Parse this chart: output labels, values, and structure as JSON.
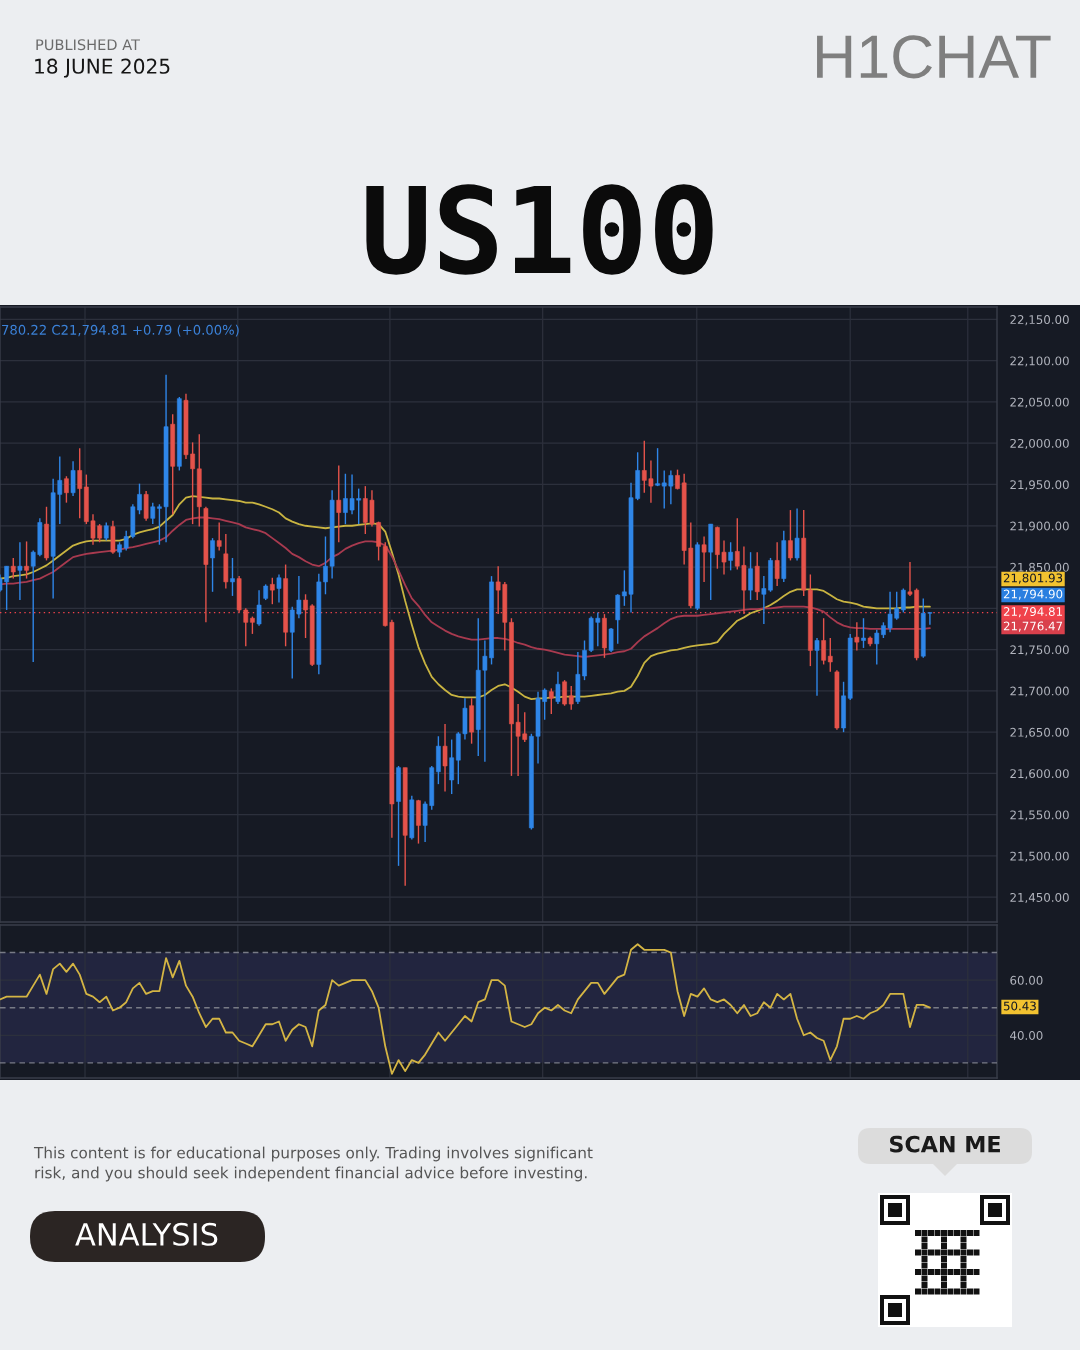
{
  "chart_data": [
    {
      "type": "candlestick",
      "title": "US100",
      "categories": [
        null,
        null,
        null,
        null,
        null,
        null,
        null,
        null,
        null,
        null,
        null,
        null,
        null,
        null,
        null,
        null,
        null,
        null,
        null,
        null,
        null,
        null,
        null,
        null,
        null,
        null,
        null,
        null,
        null,
        null,
        null,
        null,
        null,
        null,
        null,
        null,
        null,
        null,
        null,
        null,
        null,
        null,
        null,
        null,
        null,
        null,
        null,
        null,
        null,
        null,
        null,
        null,
        null,
        null,
        null,
        null,
        null,
        null,
        null,
        null,
        null,
        null,
        null,
        null,
        null,
        null,
        null,
        null,
        null,
        null,
        null,
        null,
        null,
        null,
        null,
        null,
        null,
        null,
        null,
        null,
        null,
        null,
        null,
        null,
        null,
        null,
        null,
        null,
        null,
        null,
        null,
        null,
        null,
        null,
        null,
        null,
        null,
        null,
        null,
        null,
        null,
        null,
        null,
        null,
        null,
        null,
        null,
        null,
        null,
        null,
        null,
        null,
        null,
        null,
        null,
        null,
        null,
        null,
        null,
        null,
        null,
        null,
        null,
        null,
        null,
        null,
        null,
        null,
        null,
        null,
        null,
        null,
        null,
        null,
        null,
        null,
        null,
        null,
        null,
        null,
        null
      ],
      "ohlc": [
        [
          21822,
          21841,
          21820,
          21836
        ],
        [
          21832,
          21851,
          21798,
          21851
        ],
        [
          21851,
          21861,
          21836,
          21844
        ],
        [
          21846,
          21880,
          21810,
          21851
        ],
        [
          21851,
          21881,
          21836,
          21846
        ],
        [
          21851,
          21870,
          21735,
          21868
        ],
        [
          21865,
          21909,
          21863,
          21904
        ],
        [
          21902,
          21923,
          21858,
          21861
        ],
        [
          21863,
          21957,
          21812,
          21940
        ],
        [
          21938,
          21984,
          21902,
          21955
        ],
        [
          21957,
          21960,
          21928,
          21940
        ],
        [
          21940,
          21978,
          21936,
          21967
        ],
        [
          21967,
          21994,
          21909,
          21945
        ],
        [
          21947,
          21962,
          21902,
          21905
        ],
        [
          21906,
          21914,
          21877,
          21885
        ],
        [
          21900,
          21902,
          21880,
          21885
        ],
        [
          21885,
          21904,
          21882,
          21900
        ],
        [
          21899,
          21906,
          21866,
          21868
        ],
        [
          21868,
          21880,
          21862,
          21877
        ],
        [
          21873,
          21894,
          21870,
          21887
        ],
        [
          21887,
          21926,
          21885,
          21923
        ],
        [
          21919,
          21951,
          21914,
          21938
        ],
        [
          21938,
          21942,
          21906,
          21909
        ],
        [
          21909,
          21928,
          21902,
          21923
        ],
        [
          21921,
          21926,
          21877,
          21923
        ],
        [
          21923,
          22083,
          21880,
          22020
        ],
        [
          22023,
          22035,
          21914,
          21972
        ],
        [
          21972,
          22056,
          21967,
          22054
        ],
        [
          22052,
          22060,
          21981,
          21986
        ],
        [
          21987,
          22001,
          21902,
          21969
        ],
        [
          21969,
          22011,
          21899,
          21923
        ],
        [
          21921,
          21923,
          21783,
          21853
        ],
        [
          21861,
          21885,
          21820,
          21882
        ],
        [
          21882,
          21904,
          21870,
          21875
        ],
        [
          21866,
          21890,
          21824,
          21832
        ],
        [
          21832,
          21861,
          21815,
          21836
        ],
        [
          21836,
          21839,
          21795,
          21798
        ],
        [
          21798,
          21800,
          21754,
          21783
        ],
        [
          21788,
          21790,
          21769,
          21783
        ],
        [
          21781,
          21822,
          21779,
          21804
        ],
        [
          21812,
          21829,
          21810,
          21827
        ],
        [
          21829,
          21837,
          21805,
          21822
        ],
        [
          21824,
          21841,
          21807,
          21837
        ],
        [
          21836,
          21853,
          21754,
          21771
        ],
        [
          21771,
          21802,
          21715,
          21798
        ],
        [
          21793,
          21839,
          21788,
          21810
        ],
        [
          21810,
          21817,
          21764,
          21798
        ],
        [
          21803,
          21805,
          21730,
          21732
        ],
        [
          21732,
          21842,
          21720,
          21832
        ],
        [
          21832,
          21887,
          21817,
          21851
        ],
        [
          21851,
          21943,
          21836,
          21931
        ],
        [
          21931,
          21973,
          21880,
          21916
        ],
        [
          21916,
          21963,
          21902,
          21933
        ],
        [
          21919,
          21962,
          21914,
          21933
        ],
        [
          21931,
          21945,
          21902,
          21933
        ],
        [
          21933,
          21948,
          21890,
          21904
        ],
        [
          21931,
          21943,
          21899,
          21902
        ],
        [
          21904,
          21905,
          21858,
          21875
        ],
        [
          21875,
          21880,
          21778,
          21779
        ],
        [
          21783,
          21786,
          21522,
          21563
        ],
        [
          21566,
          21609,
          21488,
          21607
        ],
        [
          21607,
          21607,
          21464,
          21525
        ],
        [
          21522,
          21573,
          21520,
          21568
        ],
        [
          21567,
          21568,
          21515,
          21537
        ],
        [
          21537,
          21566,
          21517,
          21563
        ],
        [
          21561,
          21609,
          21556,
          21607
        ],
        [
          21602,
          21645,
          21587,
          21633
        ],
        [
          21633,
          21660,
          21578,
          21609
        ],
        [
          21592,
          21641,
          21575,
          21619
        ],
        [
          21616,
          21650,
          21587,
          21648
        ],
        [
          21648,
          21691,
          21641,
          21679
        ],
        [
          21682,
          21691,
          21636,
          21650
        ],
        [
          21653,
          21788,
          21621,
          21725
        ],
        [
          21725,
          21761,
          21614,
          21742
        ],
        [
          21740,
          21839,
          21732,
          21832
        ],
        [
          21832,
          21851,
          21793,
          21822
        ],
        [
          21829,
          21832,
          21749,
          21783
        ],
        [
          21783,
          21788,
          21597,
          21660
        ],
        [
          21662,
          21684,
          21597,
          21645
        ],
        [
          21648,
          21674,
          21638,
          21641
        ],
        [
          21534,
          21648,
          21532,
          21645
        ],
        [
          21645,
          21699,
          21612,
          21691
        ],
        [
          21687,
          21703,
          21665,
          21701
        ],
        [
          21699,
          21703,
          21672,
          21691
        ],
        [
          21687,
          21723,
          21684,
          21708
        ],
        [
          21711,
          21713,
          21682,
          21684
        ],
        [
          21694,
          21706,
          21677,
          21684
        ],
        [
          21687,
          21747,
          21684,
          21720
        ],
        [
          21718,
          21761,
          21713,
          21749
        ],
        [
          21749,
          21790,
          21747,
          21788
        ],
        [
          21783,
          21795,
          21754,
          21788
        ],
        [
          21788,
          21793,
          21740,
          21752
        ],
        [
          21749,
          21776,
          21747,
          21775
        ],
        [
          21786,
          21817,
          21757,
          21816
        ],
        [
          21815,
          21846,
          21803,
          21820
        ],
        [
          21817,
          21952,
          21795,
          21934
        ],
        [
          21933,
          21989,
          21931,
          21967
        ],
        [
          21967,
          22003,
          21940,
          21955
        ],
        [
          21957,
          21979,
          21928,
          21948
        ],
        [
          21949,
          21994,
          21948,
          21951
        ],
        [
          21948,
          21967,
          21921,
          21952
        ],
        [
          21948,
          21967,
          21926,
          21961
        ],
        [
          21961,
          21968,
          21944,
          21945
        ],
        [
          21952,
          21963,
          21853,
          21870
        ],
        [
          21873,
          21904,
          21800,
          21803
        ],
        [
          21800,
          21880,
          21798,
          21877
        ],
        [
          21877,
          21887,
          21832,
          21868
        ],
        [
          21868,
          21902,
          21810,
          21902
        ],
        [
          21898,
          21899,
          21848,
          21865
        ],
        [
          21868,
          21882,
          21841,
          21856
        ],
        [
          21858,
          21880,
          21846,
          21868
        ],
        [
          21869,
          21909,
          21847,
          21851
        ],
        [
          21852,
          21875,
          21793,
          21822
        ],
        [
          21822,
          21868,
          21810,
          21848
        ],
        [
          21851,
          21868,
          21810,
          21820
        ],
        [
          21817,
          21839,
          21781,
          21824
        ],
        [
          21822,
          21861,
          21820,
          21858
        ],
        [
          21858,
          21880,
          21827,
          21836
        ],
        [
          21836,
          21894,
          21832,
          21882
        ],
        [
          21882,
          21919,
          21858,
          21861
        ],
        [
          21861,
          21921,
          21858,
          21885
        ],
        [
          21885,
          21919,
          21815,
          21822
        ],
        [
          21822,
          21841,
          21730,
          21749
        ],
        [
          21749,
          21764,
          21694,
          21761
        ],
        [
          21761,
          21788,
          21732,
          21737
        ],
        [
          21742,
          21764,
          21723,
          21735
        ],
        [
          21723,
          21725,
          21653,
          21655
        ],
        [
          21655,
          21711,
          21650,
          21694
        ],
        [
          21691,
          21769,
          21689,
          21764
        ],
        [
          21765,
          21783,
          21749,
          21759
        ],
        [
          21761,
          21788,
          21752,
          21764
        ],
        [
          21764,
          21766,
          21754,
          21757
        ],
        [
          21757,
          21774,
          21732,
          21770
        ],
        [
          21768,
          21783,
          21764,
          21779
        ],
        [
          21776,
          21820,
          21771,
          21793
        ],
        [
          21788,
          21820,
          21786,
          21800
        ],
        [
          21798,
          21824,
          21795,
          21822
        ],
        [
          21820,
          21856,
          21815,
          21817
        ],
        [
          21822,
          21824,
          21737,
          21740
        ],
        [
          21742,
          21812,
          21740,
          21794
        ],
        [
          21794,
          21795,
          21780.22,
          21794.81
        ]
      ],
      "colors": [
        "#2f86e8",
        "#2f86e8",
        "#e5534b",
        "#2f86e8",
        "#e5534b",
        "#2f86e8",
        "#2f86e8",
        "#e5534b",
        "#2f86e8",
        "#2f86e8",
        "#e5534b",
        "#2f86e8",
        "#e5534b",
        "#e5534b",
        "#e5534b",
        "#e5534b",
        "#2f86e8",
        "#e5534b",
        "#2f86e8",
        "#2f86e8",
        "#2f86e8",
        "#2f86e8",
        "#e5534b",
        "#2f86e8",
        "#2f86e8",
        "#2f86e8",
        "#e5534b",
        "#2f86e8",
        "#e5534b",
        "#e5534b",
        "#e5534b",
        "#e5534b",
        "#2f86e8",
        "#e5534b",
        "#e5534b",
        "#2f86e8",
        "#e5534b",
        "#e5534b",
        "#e5534b",
        "#2f86e8",
        "#2f86e8",
        "#e5534b",
        "#2f86e8",
        "#e5534b",
        "#2f86e8",
        "#2f86e8",
        "#e5534b",
        "#e5534b",
        "#2f86e8",
        "#2f86e8",
        "#2f86e8",
        "#e5534b",
        "#2f86e8",
        "#2f86e8",
        "#2f86e8",
        "#e5534b",
        "#e5534b",
        "#e5534b",
        "#e5534b",
        "#e5534b",
        "#2f86e8",
        "#e5534b",
        "#2f86e8",
        "#e5534b",
        "#2f86e8",
        "#2f86e8",
        "#2f86e8",
        "#e5534b",
        "#2f86e8",
        "#2f86e8",
        "#2f86e8",
        "#e5534b",
        "#2f86e8",
        "#2f86e8",
        "#2f86e8",
        "#e5534b",
        "#e5534b",
        "#e5534b",
        "#e5534b",
        "#e5534b",
        "#2f86e8",
        "#2f86e8",
        "#2f86e8",
        "#e5534b",
        "#2f86e8",
        "#e5534b",
        "#e5534b",
        "#2f86e8",
        "#2f86e8",
        "#2f86e8",
        "#2f86e8",
        "#e5534b",
        "#2f86e8",
        "#2f86e8",
        "#2f86e8",
        "#2f86e8",
        "#2f86e8",
        "#e5534b",
        "#e5534b",
        "#2f86e8",
        "#2f86e8",
        "#2f86e8",
        "#e5534b",
        "#e5534b",
        "#e5534b",
        "#2f86e8",
        "#e5534b",
        "#2f86e8",
        "#e5534b",
        "#e5534b",
        "#2f86e8",
        "#e5534b",
        "#e5534b",
        "#2f86e8",
        "#e5534b",
        "#2f86e8",
        "#2f86e8",
        "#e5534b",
        "#2f86e8",
        "#e5534b",
        "#2f86e8",
        "#e5534b",
        "#e5534b",
        "#2f86e8",
        "#e5534b",
        "#e5534b",
        "#e5534b",
        "#2f86e8",
        "#2f86e8",
        "#e5534b",
        "#2f86e8",
        "#e5534b",
        "#2f86e8",
        "#2f86e8",
        "#2f86e8",
        "#2f86e8",
        "#2f86e8",
        "#e5534b",
        "#e5534b",
        "#2f86e8",
        "#2f86e8"
      ],
      "series": [
        {
          "type": "line",
          "color": "#c9b441",
          "values": [
            21836,
            21837,
            21839,
            21840,
            21841,
            21844,
            21848,
            21852,
            21858,
            21864,
            21870,
            21876,
            21879,
            21881,
            21882,
            21882,
            21882,
            21882,
            21882,
            21884,
            21889,
            21892,
            21894,
            21896,
            21899,
            21906,
            21913,
            21926,
            21934,
            21936,
            21935,
            21934,
            21933,
            21933,
            21932,
            21931,
            21930,
            21928,
            21928,
            21926,
            21923,
            21920,
            21916,
            21909,
            21905,
            21902,
            21900,
            21899,
            21898,
            21897,
            21898,
            21899,
            21900,
            21900,
            21901,
            21902,
            21903,
            21902,
            21893,
            21868,
            21841,
            21809,
            21780,
            21753,
            21733,
            21717,
            21708,
            21701,
            21695,
            21693,
            21692,
            21692,
            21692,
            21695,
            21701,
            21706,
            21708,
            21704,
            21699,
            21693,
            21690,
            21691,
            21691,
            21692,
            21692,
            21693,
            21693,
            21693,
            21693,
            21694,
            21695,
            21696,
            21697,
            21699,
            21700,
            21705,
            21718,
            21734,
            21742,
            21745,
            21747,
            21749,
            21750,
            21752,
            21754,
            21755,
            21756,
            21757,
            21759,
            21769,
            21777,
            21785,
            21789,
            21794,
            21797,
            21800,
            21804,
            21809,
            21815,
            21820,
            21823,
            21823,
            21823,
            21823,
            21821,
            21816,
            21811,
            21808,
            21807,
            21805,
            21802,
            21801,
            21800,
            21800,
            21800,
            21800,
            21801,
            21801,
            21802,
            21802,
            21802
          ]
        },
        {
          "type": "line",
          "color": "#a83a4f",
          "values": [
            21829,
            21830,
            21830,
            21831,
            21832,
            21834,
            21836,
            21840,
            21844,
            21850,
            21856,
            21862,
            21864,
            21866,
            21867,
            21868,
            21869,
            21870,
            21871,
            21873,
            21874,
            21876,
            21878,
            21880,
            21882,
            21886,
            21894,
            21901,
            21907,
            21909,
            21910,
            21910,
            21909,
            21908,
            21906,
            21904,
            21902,
            21898,
            21896,
            21894,
            21891,
            21885,
            21879,
            21873,
            21866,
            21862,
            21857,
            21853,
            21851,
            21855,
            21862,
            21866,
            21872,
            21876,
            21879,
            21881,
            21881,
            21880,
            21876,
            21863,
            21846,
            21828,
            21812,
            21803,
            21792,
            21783,
            21778,
            21773,
            21769,
            21766,
            21764,
            21762,
            21762,
            21763,
            21764,
            21764,
            21763,
            21761,
            21758,
            21756,
            21753,
            21751,
            21750,
            21748,
            21746,
            21744,
            21743,
            21742,
            21741,
            21742,
            21743,
            21744,
            21745,
            21747,
            21748,
            21751,
            21759,
            21766,
            21771,
            21776,
            21782,
            21787,
            21790,
            21791,
            21791,
            21791,
            21792,
            21793,
            21794,
            21795,
            21796,
            21797,
            21798,
            21799,
            21799,
            21800,
            21800,
            21801,
            21802,
            21802,
            21802,
            21802,
            21801,
            21799,
            21796,
            21789,
            21783,
            21779,
            21777,
            21776,
            21776,
            21775,
            21775,
            21775,
            21775,
            21775,
            21775,
            21775,
            21775,
            21775,
            21776
          ]
        }
      ],
      "ylim": [
        21420,
        22165
      ],
      "yticks": [
        {
          "value": 22150,
          "label": "22,150.00"
        },
        {
          "value": 22100,
          "label": "22,100.00"
        },
        {
          "value": 22050,
          "label": "22,050.00"
        },
        {
          "value": 22000,
          "label": "22,000.00"
        },
        {
          "value": 21950,
          "label": "21,950.00"
        },
        {
          "value": 21900,
          "label": "21,900.00"
        },
        {
          "value": 21850,
          "label": "21,850.00"
        },
        {
          "value": 21800,
          "label": null
        },
        {
          "value": 21750,
          "label": "21,750.00"
        },
        {
          "value": 21700,
          "label": "21,700.00"
        },
        {
          "value": 21650,
          "label": "21,650.00"
        },
        {
          "value": 21600,
          "label": "21,600.00"
        },
        {
          "value": 21550,
          "label": "21,550.00"
        },
        {
          "value": 21500,
          "label": "21,500.00"
        },
        {
          "value": 21450,
          "label": "21,450.00"
        }
      ],
      "ref_lines": [
        {
          "axis": "y",
          "value": 21794.81,
          "label": "21,794.81",
          "color": "#f0434b",
          "line_style": "dotted"
        }
      ],
      "annotations": [
        "PUBLISHED AT",
        "18 JUNE 2025",
        "H1CHAT",
        "780.22 C21,794.81 +0.79 (+0.00%)",
        "21,801.93",
        "21,794.90",
        "21,776.47"
      ],
      "grid": true,
      "tick_labels": "y"
    },
    {
      "type": "line",
      "categories": [
        null,
        null,
        null,
        null,
        null,
        null,
        null,
        null,
        null,
        null,
        null,
        null,
        null,
        null,
        null,
        null,
        null,
        null,
        null,
        null,
        null,
        null,
        null,
        null,
        null,
        null,
        null,
        null,
        null,
        null,
        null,
        null,
        null,
        null,
        null,
        null,
        null,
        null,
        null,
        null,
        null,
        null,
        null,
        null,
        null,
        null,
        null,
        null,
        null,
        null,
        null,
        null,
        null,
        null,
        null,
        null,
        null,
        null,
        null,
        null,
        null,
        null,
        null,
        null,
        null,
        null,
        null,
        null,
        null,
        null,
        null,
        null,
        null,
        null,
        null,
        null,
        null,
        null,
        null,
        null,
        null,
        null,
        null,
        null,
        null,
        null,
        null,
        null,
        null,
        null,
        null,
        null,
        null,
        null,
        null,
        null,
        null,
        null,
        null,
        null,
        null,
        null,
        null,
        null,
        null,
        null,
        null,
        null,
        null,
        null,
        null,
        null,
        null,
        null,
        null,
        null,
        null,
        null,
        null,
        null,
        null,
        null,
        null,
        null,
        null,
        null,
        null,
        null,
        null,
        null,
        null,
        null,
        null,
        null,
        null,
        null,
        null,
        null,
        null,
        null,
        null
      ],
      "series": [
        {
          "color": "#d4b544",
          "values": [
            53,
            54,
            54,
            54,
            54,
            58,
            62,
            55,
            64,
            66,
            63,
            66,
            62,
            55,
            54,
            52,
            54,
            49,
            50,
            52,
            57,
            59,
            55,
            56,
            56,
            68,
            61,
            67,
            58,
            54,
            48,
            43,
            46,
            46,
            41,
            41,
            38,
            37,
            36,
            40,
            44,
            44,
            45,
            38,
            42,
            44,
            43,
            36,
            49,
            51,
            60,
            58,
            59,
            60,
            60,
            60,
            56,
            50,
            36,
            26,
            31,
            27,
            31,
            30,
            33,
            37,
            41,
            38,
            41,
            44,
            47,
            45,
            52,
            53,
            60,
            60,
            58,
            45,
            44,
            43,
            44,
            48,
            50,
            49,
            51,
            49,
            48,
            53,
            56,
            59,
            59,
            55,
            58,
            61,
            62,
            71,
            73,
            71,
            71,
            71,
            71,
            70,
            56,
            47,
            55,
            54,
            57,
            53,
            52,
            53,
            51,
            48,
            51,
            47,
            48,
            52,
            50,
            55,
            53,
            55,
            46,
            40,
            41,
            39,
            38,
            31,
            36,
            46,
            46,
            47,
            46,
            48,
            49,
            51,
            55,
            55,
            55,
            43,
            51,
            51,
            50
          ]
        }
      ],
      "ylim": [
        24.5,
        80
      ],
      "yticks": [
        {
          "value": 60,
          "label": "60.00"
        },
        {
          "value": 40,
          "label": "40.00"
        }
      ],
      "bands": [
        {
          "axis": "y",
          "from": 30,
          "to": 70,
          "color": "#22253f"
        }
      ],
      "ref_lines": [
        {
          "axis": "y",
          "value": 70,
          "color": "#787b86",
          "line_style": "dashed"
        },
        {
          "axis": "y",
          "value": 50,
          "color": "#787b86",
          "line_style": "dashed"
        },
        {
          "axis": "y",
          "value": 30,
          "color": "#787b86",
          "line_style": "dashed"
        }
      ],
      "annotations": [
        "This content is for educational purposes only. Trading involves significant\nrisk, and you should seek independent financial advice before investing.",
        "ANALYSIS",
        "SCAN ME",
        "50.43"
      ],
      "grid": true,
      "tick_labels": "y"
    }
  ]
}
